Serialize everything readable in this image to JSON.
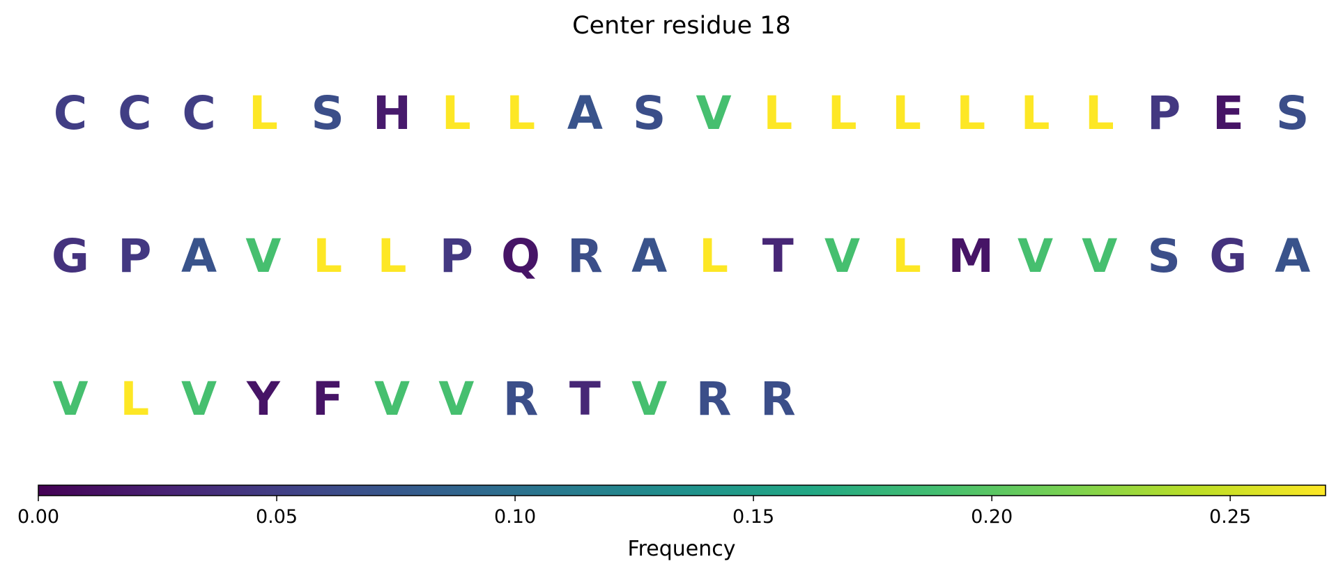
{
  "chart_data": {
    "type": "sequence-logo-heatmap",
    "title": "Center residue 18",
    "colormap": "viridis",
    "vmin": 0.0,
    "vmax": 0.27,
    "colorbar_label": "Frequency",
    "colorbar_ticks": [
      0.0,
      0.05,
      0.1,
      0.15,
      0.2,
      0.25
    ],
    "colorbar_tick_labels": [
      "0.00",
      "0.05",
      "0.10",
      "0.15",
      "0.20",
      "0.25"
    ],
    "residues_per_row": 20,
    "residues": [
      {
        "aa": "C",
        "freq": 0.05
      },
      {
        "aa": "C",
        "freq": 0.05
      },
      {
        "aa": "C",
        "freq": 0.05
      },
      {
        "aa": "L",
        "freq": 0.27
      },
      {
        "aa": "S",
        "freq": 0.065
      },
      {
        "aa": "H",
        "freq": 0.02
      },
      {
        "aa": "L",
        "freq": 0.27
      },
      {
        "aa": "L",
        "freq": 0.27
      },
      {
        "aa": "A",
        "freq": 0.07
      },
      {
        "aa": "S",
        "freq": 0.065
      },
      {
        "aa": "V",
        "freq": 0.19
      },
      {
        "aa": "L",
        "freq": 0.27
      },
      {
        "aa": "L",
        "freq": 0.27
      },
      {
        "aa": "L",
        "freq": 0.27
      },
      {
        "aa": "L",
        "freq": 0.27
      },
      {
        "aa": "L",
        "freq": 0.27
      },
      {
        "aa": "L",
        "freq": 0.27
      },
      {
        "aa": "P",
        "freq": 0.045
      },
      {
        "aa": "E",
        "freq": 0.015
      },
      {
        "aa": "S",
        "freq": 0.065
      },
      {
        "aa": "G",
        "freq": 0.04
      },
      {
        "aa": "P",
        "freq": 0.045
      },
      {
        "aa": "A",
        "freq": 0.07
      },
      {
        "aa": "V",
        "freq": 0.19
      },
      {
        "aa": "L",
        "freq": 0.27
      },
      {
        "aa": "L",
        "freq": 0.27
      },
      {
        "aa": "P",
        "freq": 0.045
      },
      {
        "aa": "Q",
        "freq": 0.015
      },
      {
        "aa": "R",
        "freq": 0.065
      },
      {
        "aa": "A",
        "freq": 0.07
      },
      {
        "aa": "L",
        "freq": 0.27
      },
      {
        "aa": "T",
        "freq": 0.03
      },
      {
        "aa": "V",
        "freq": 0.19
      },
      {
        "aa": "L",
        "freq": 0.27
      },
      {
        "aa": "M",
        "freq": 0.015
      },
      {
        "aa": "V",
        "freq": 0.19
      },
      {
        "aa": "V",
        "freq": 0.19
      },
      {
        "aa": "S",
        "freq": 0.065
      },
      {
        "aa": "G",
        "freq": 0.04
      },
      {
        "aa": "A",
        "freq": 0.07
      },
      {
        "aa": "V",
        "freq": 0.19
      },
      {
        "aa": "L",
        "freq": 0.27
      },
      {
        "aa": "V",
        "freq": 0.19
      },
      {
        "aa": "Y",
        "freq": 0.015
      },
      {
        "aa": "F",
        "freq": 0.015
      },
      {
        "aa": "V",
        "freq": 0.19
      },
      {
        "aa": "V",
        "freq": 0.19
      },
      {
        "aa": "R",
        "freq": 0.065
      },
      {
        "aa": "T",
        "freq": 0.03
      },
      {
        "aa": "V",
        "freq": 0.19
      },
      {
        "aa": "R",
        "freq": 0.065
      },
      {
        "aa": "R",
        "freq": 0.065
      }
    ]
  }
}
